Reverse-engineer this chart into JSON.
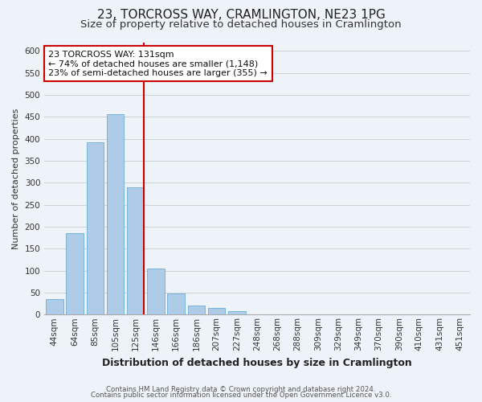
{
  "title": "23, TORCROSS WAY, CRAMLINGTON, NE23 1PG",
  "subtitle": "Size of property relative to detached houses in Cramlington",
  "xlabel": "Distribution of detached houses by size in Cramlington",
  "ylabel": "Number of detached properties",
  "footer_line1": "Contains HM Land Registry data © Crown copyright and database right 2024.",
  "footer_line2": "Contains public sector information licensed under the Open Government Licence v3.0.",
  "bar_labels": [
    "44sqm",
    "64sqm",
    "85sqm",
    "105sqm",
    "125sqm",
    "146sqm",
    "166sqm",
    "186sqm",
    "207sqm",
    "227sqm",
    "248sqm",
    "268sqm",
    "288sqm",
    "309sqm",
    "329sqm",
    "349sqm",
    "370sqm",
    "390sqm",
    "410sqm",
    "431sqm",
    "451sqm"
  ],
  "bar_values": [
    35,
    185,
    393,
    457,
    290,
    105,
    48,
    20,
    15,
    8,
    1,
    1,
    0,
    0,
    0,
    0,
    0,
    0,
    0,
    0,
    1
  ],
  "bar_color": "#aecce8",
  "bar_edge_color": "#6aafd6",
  "property_line_index": 4,
  "property_line_color": "#cc0000",
  "annotation_line1": "23 TORCROSS WAY: 131sqm",
  "annotation_line2": "← 74% of detached houses are smaller (1,148)",
  "annotation_line3": "23% of semi-detached houses are larger (355) →",
  "annotation_box_facecolor": "#ffffff",
  "annotation_box_edgecolor": "#cc0000",
  "ylim": [
    0,
    620
  ],
  "yticks": [
    0,
    50,
    100,
    150,
    200,
    250,
    300,
    350,
    400,
    450,
    500,
    550,
    600
  ],
  "grid_color": "#cccccc",
  "background_color": "#eef2f9",
  "title_fontsize": 11,
  "subtitle_fontsize": 9.5,
  "xlabel_fontsize": 9,
  "ylabel_fontsize": 8,
  "tick_fontsize": 7.5,
  "annotation_fontsize": 8
}
